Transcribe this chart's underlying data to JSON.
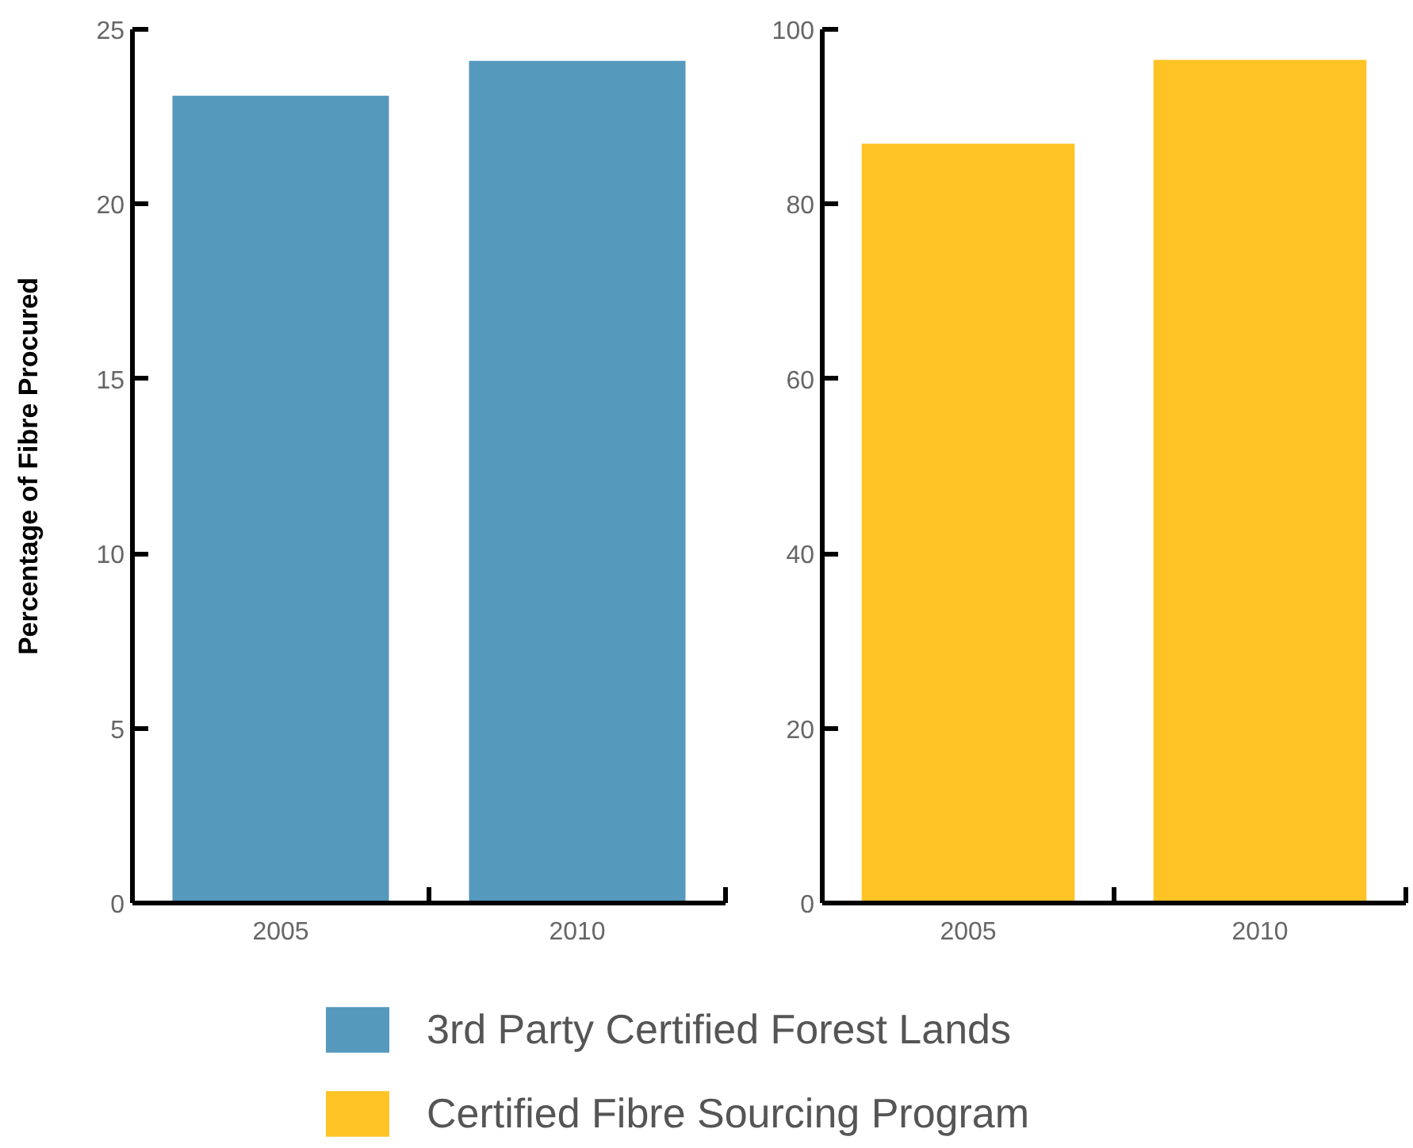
{
  "chart_data": [
    {
      "type": "bar",
      "categories": [
        "2005",
        "2010"
      ],
      "ylabel": "Percentage of Fibre Procured",
      "ylim": [
        0,
        25
      ],
      "yticks": [
        0,
        5,
        10,
        15,
        20,
        25
      ],
      "series": [
        {
          "name": "3rd Party Certified Forest Lands",
          "color": "#5599bd",
          "values": [
            23.1,
            24.1
          ]
        }
      ],
      "legend": "bottom"
    },
    {
      "type": "bar",
      "categories": [
        "2005",
        "2010"
      ],
      "ylim": [
        0,
        100
      ],
      "yticks": [
        0,
        20,
        40,
        60,
        80,
        100
      ],
      "series": [
        {
          "name": "Certified Fibre Sourcing Program",
          "color": "#fec325",
          "values": [
            86.9,
            96.5
          ]
        }
      ],
      "legend": "bottom"
    }
  ]
}
